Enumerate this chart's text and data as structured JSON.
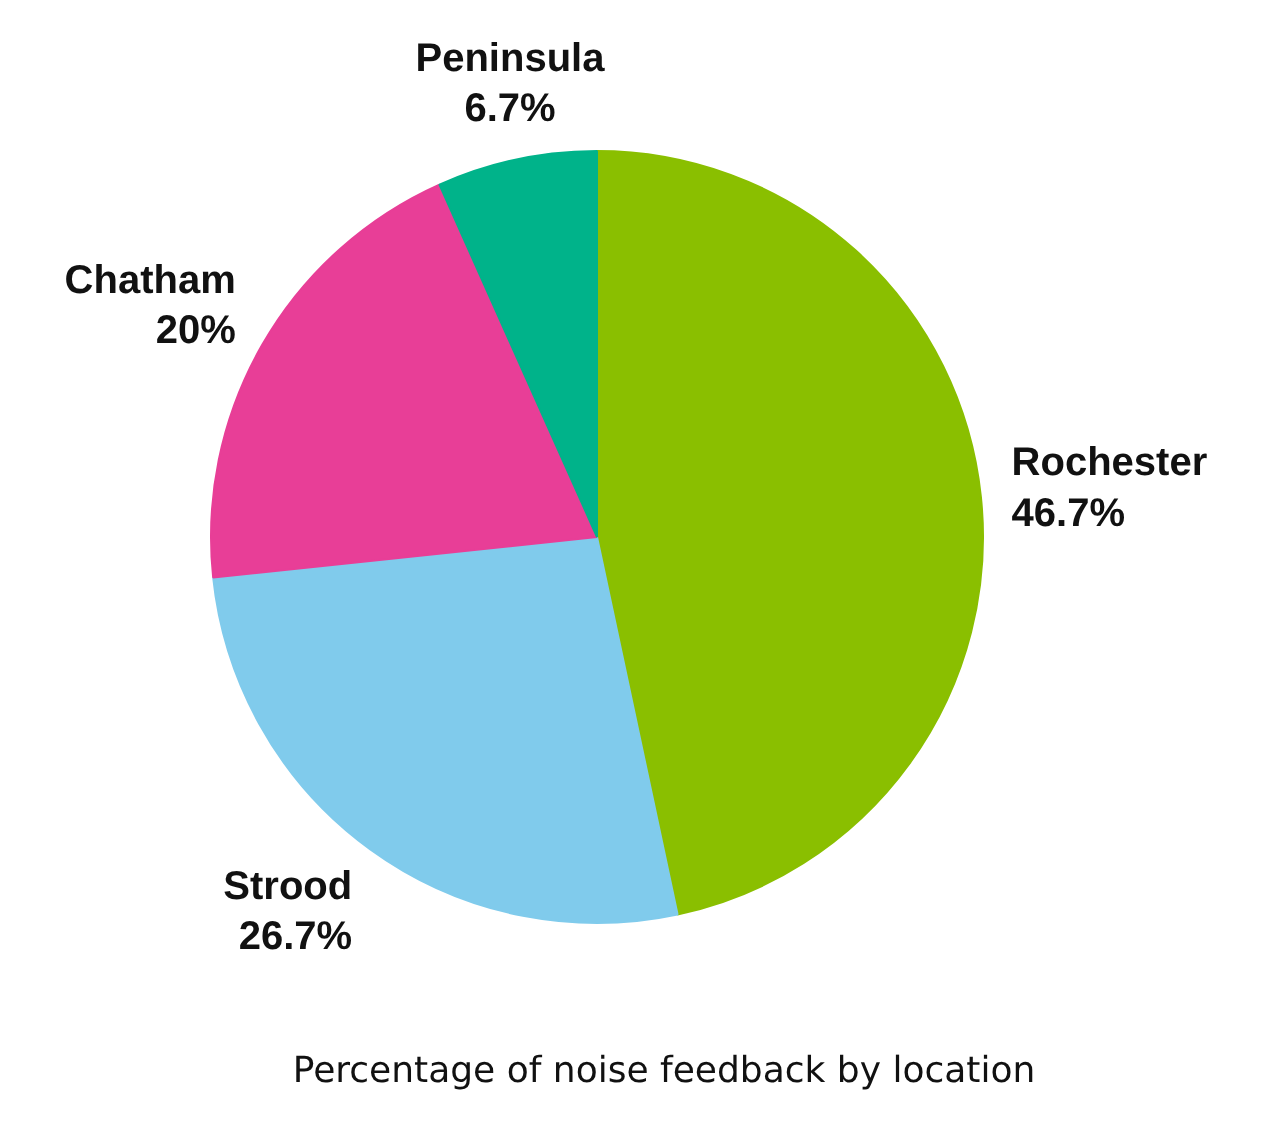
{
  "chart_data": {
    "type": "pie",
    "title": "Percentage of noise feedback by location",
    "categories": [
      "Rochester",
      "Strood",
      "Chatham",
      "Peninsula"
    ],
    "values": [
      46.7,
      26.7,
      20,
      6.7
    ],
    "colors": [
      "#8abf00",
      "#80cbec",
      "#e83e97",
      "#00b38a"
    ],
    "value_labels": [
      "46.7%",
      "26.7%",
      "20%",
      "6.7%"
    ]
  }
}
